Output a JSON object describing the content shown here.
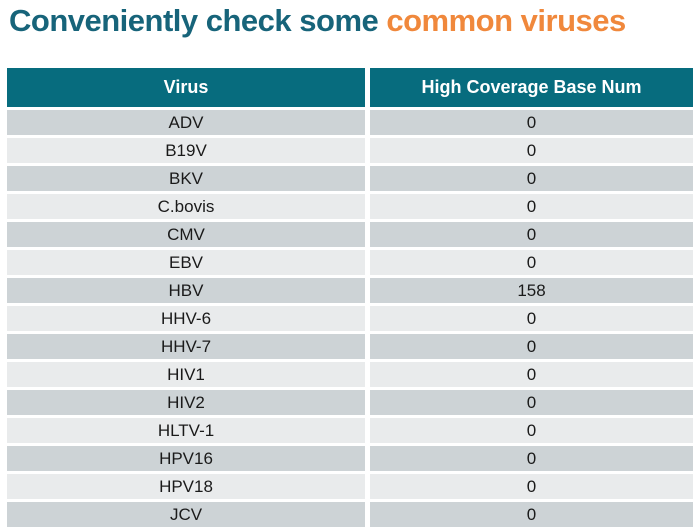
{
  "title": {
    "part1": "Conveniently check some ",
    "part2": "common viruses"
  },
  "colors": {
    "title_teal": "#17647A",
    "title_orange": "#F0883C",
    "header_bg": "#076C7E",
    "header_text": "#FFFFFF",
    "row_dark": "#CDD3D6",
    "row_light": "#E9EBEC",
    "cell_text": "#1A1A1A"
  },
  "table": {
    "columns": [
      "Virus",
      "High Coverage Base Num"
    ],
    "rows": [
      {
        "virus": "ADV",
        "value": "0"
      },
      {
        "virus": "B19V",
        "value": "0"
      },
      {
        "virus": "BKV",
        "value": "0"
      },
      {
        "virus": "C.bovis",
        "value": "0"
      },
      {
        "virus": "CMV",
        "value": "0"
      },
      {
        "virus": "EBV",
        "value": "0"
      },
      {
        "virus": "HBV",
        "value": "158"
      },
      {
        "virus": "HHV-6",
        "value": "0"
      },
      {
        "virus": "HHV-7",
        "value": "0"
      },
      {
        "virus": "HIV1",
        "value": "0"
      },
      {
        "virus": "HIV2",
        "value": "0"
      },
      {
        "virus": "HLTV-1",
        "value": "0"
      },
      {
        "virus": "HPV16",
        "value": "0"
      },
      {
        "virus": "HPV18",
        "value": "0"
      },
      {
        "virus": "JCV",
        "value": "0"
      }
    ]
  }
}
